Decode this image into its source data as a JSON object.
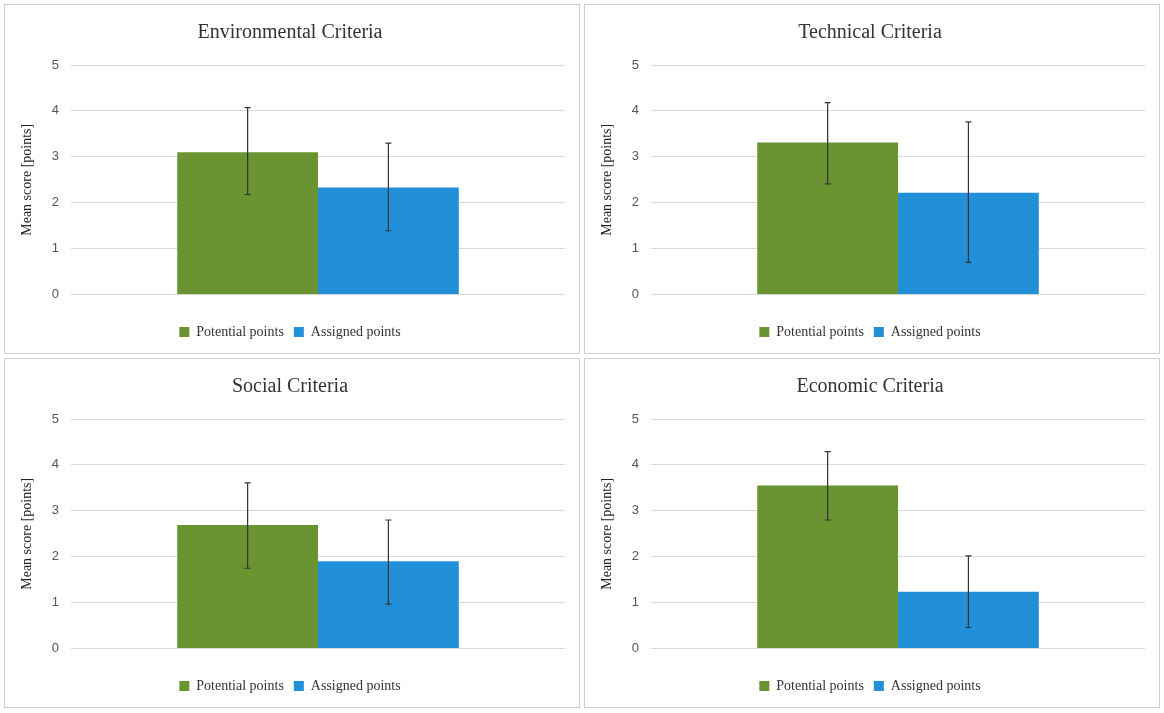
{
  "chart_data": [
    {
      "type": "bar",
      "title": "Environmental Criteria",
      "ylabel": "Mean score [points]",
      "categories": [
        null
      ],
      "ylim": [
        0,
        5
      ],
      "yticks": [
        0,
        1,
        2,
        3,
        4,
        5
      ],
      "grid": "y",
      "legend": "bottom",
      "series": [
        {
          "name": "Potential points",
          "color": "#6a9432",
          "values": [
            3.1
          ],
          "errors": [
            [
              2.18,
              4.07
            ]
          ]
        },
        {
          "name": "Assigned points",
          "color": "#2290d8",
          "values": [
            2.33
          ],
          "errors": [
            [
              1.39,
              3.3
            ]
          ]
        }
      ]
    },
    {
      "type": "bar",
      "title": "Technical Criteria",
      "ylabel": "Mean score [points]",
      "categories": [
        null
      ],
      "ylim": [
        0,
        5
      ],
      "yticks": [
        0,
        1,
        2,
        3,
        4,
        5
      ],
      "grid": "y",
      "legend": "bottom",
      "series": [
        {
          "name": "Potential points",
          "color": "#6a9432",
          "values": [
            3.31
          ],
          "errors": [
            [
              2.41,
              4.18
            ]
          ]
        },
        {
          "name": "Assigned points",
          "color": "#2290d8",
          "values": [
            2.22
          ],
          "errors": [
            [
              0.7,
              3.76
            ]
          ]
        }
      ]
    },
    {
      "type": "bar",
      "title": "Social Criteria",
      "ylabel": "Mean score [points]",
      "categories": [
        null
      ],
      "ylim": [
        0,
        5
      ],
      "yticks": [
        0,
        1,
        2,
        3,
        4,
        5
      ],
      "grid": "y",
      "legend": "bottom",
      "series": [
        {
          "name": "Potential points",
          "color": "#6a9432",
          "values": [
            2.69
          ],
          "errors": [
            [
              1.75,
              3.61
            ]
          ]
        },
        {
          "name": "Assigned points",
          "color": "#2290d8",
          "values": [
            1.9
          ],
          "errors": [
            [
              0.97,
              2.8
            ]
          ]
        }
      ]
    },
    {
      "type": "bar",
      "title": "Economic Criteria",
      "ylabel": "Mean score [points]",
      "categories": [
        null
      ],
      "ylim": [
        0,
        5
      ],
      "yticks": [
        0,
        1,
        2,
        3,
        4,
        5
      ],
      "grid": "y",
      "legend": "bottom",
      "series": [
        {
          "name": "Potential points",
          "color": "#6a9432",
          "values": [
            3.55
          ],
          "errors": [
            [
              2.8,
              4.29
            ]
          ]
        },
        {
          "name": "Assigned points",
          "color": "#2290d8",
          "values": [
            1.24
          ],
          "errors": [
            [
              0.46,
              2.02
            ]
          ]
        }
      ]
    }
  ]
}
